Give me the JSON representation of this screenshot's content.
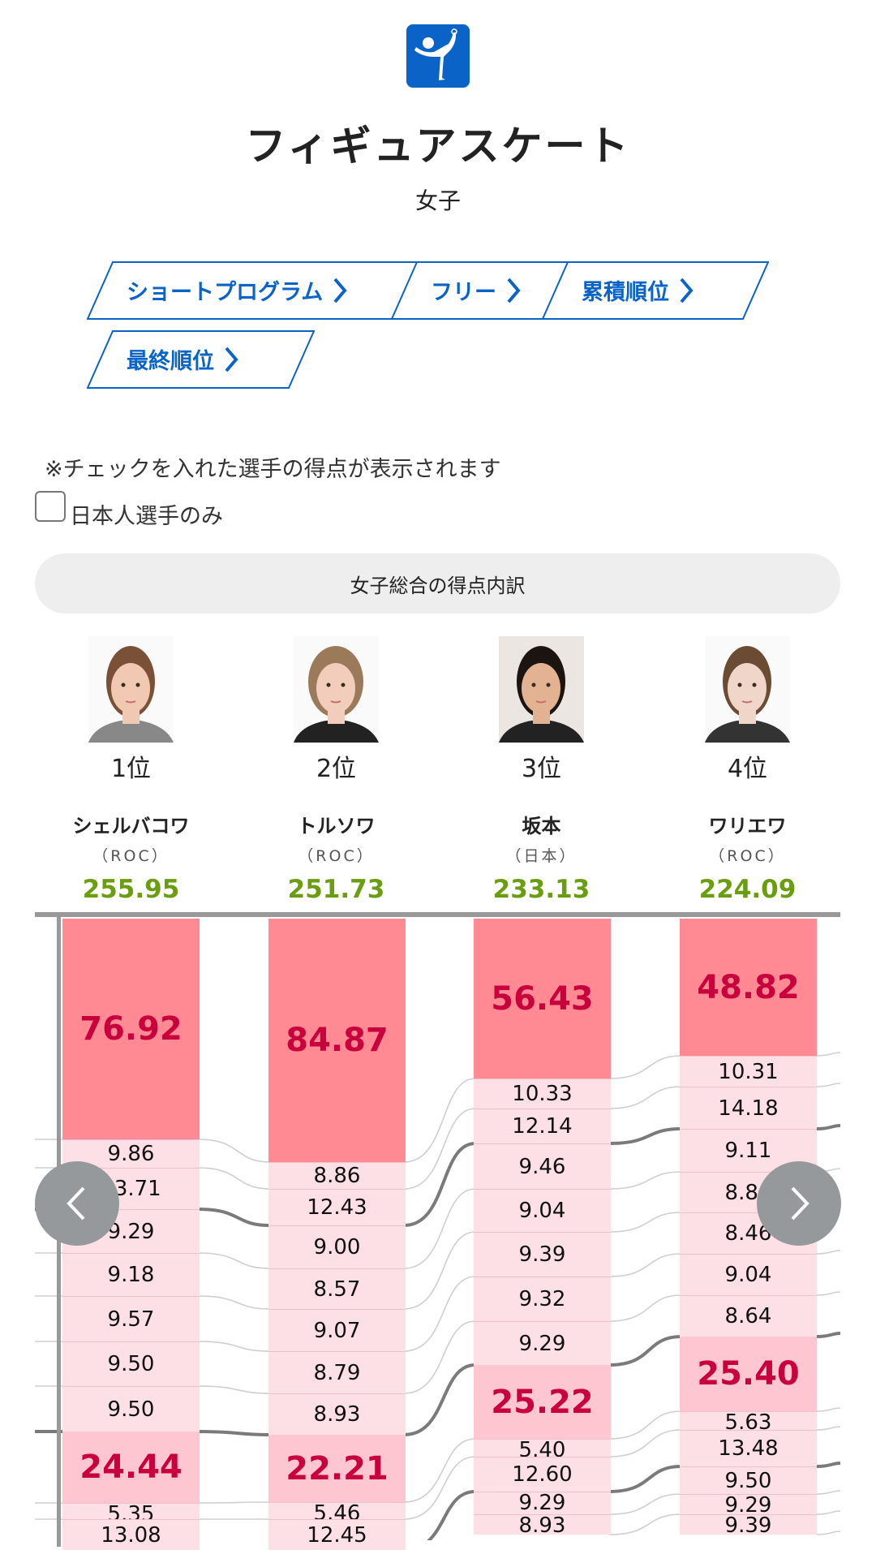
{
  "header": {
    "sport_icon": "figure-skating-pictogram",
    "title": "フィギュアスケート",
    "subtitle": "女子"
  },
  "tabs": [
    {
      "label": "ショートプログラム",
      "icon": "chevron-right"
    },
    {
      "label": "フリー",
      "icon": "chevron-right"
    },
    {
      "label": "累積順位",
      "icon": "chevron-right"
    },
    {
      "label": "最終順位",
      "icon": "chevron-right"
    }
  ],
  "filter": {
    "note": "※チェックを入れた選手の得点が表示されます",
    "checkbox_label": "日本人選手のみ",
    "checked": false
  },
  "breakdown_button": "女子総合の得点内訳",
  "colors": {
    "accent": "#0a64c8",
    "total": "#6a9e10",
    "major_bar": "#ff8a94",
    "major2_bar": "#fdc6d0",
    "minor_bar": "#fde0e6",
    "major_text": "#c8003c"
  },
  "athletes": [
    {
      "rank": "1位",
      "name": "シェルバコワ",
      "country": "（ROC）",
      "total": "255.95",
      "segments": [
        {
          "value": "76.92",
          "kind": "major"
        },
        {
          "value": "9.86",
          "kind": "minor"
        },
        {
          "value": "13.71",
          "kind": "minor"
        },
        {
          "value": "9.29",
          "kind": "minor"
        },
        {
          "value": "9.18",
          "kind": "minor"
        },
        {
          "value": "9.57",
          "kind": "minor"
        },
        {
          "value": "9.50",
          "kind": "minor"
        },
        {
          "value": "9.50",
          "kind": "minor"
        },
        {
          "value": "24.44",
          "kind": "major2"
        },
        {
          "value": "5.35",
          "kind": "minor"
        },
        {
          "value": "13.08",
          "kind": "minor"
        }
      ]
    },
    {
      "rank": "2位",
      "name": "トルソワ",
      "country": "（ROC）",
      "total": "251.73",
      "segments": [
        {
          "value": "84.87",
          "kind": "major"
        },
        {
          "value": "8.86",
          "kind": "minor"
        },
        {
          "value": "12.43",
          "kind": "minor"
        },
        {
          "value": "9.00",
          "kind": "minor"
        },
        {
          "value": "8.57",
          "kind": "minor"
        },
        {
          "value": "9.07",
          "kind": "minor"
        },
        {
          "value": "8.79",
          "kind": "minor"
        },
        {
          "value": "8.93",
          "kind": "minor"
        },
        {
          "value": "22.21",
          "kind": "major2"
        },
        {
          "value": "5.46",
          "kind": "minor"
        },
        {
          "value": "12.45",
          "kind": "minor"
        }
      ]
    },
    {
      "rank": "3位",
      "name": "坂本",
      "country": "（日本）",
      "total": "233.13",
      "segments": [
        {
          "value": "56.43",
          "kind": "major"
        },
        {
          "value": "10.33",
          "kind": "minor"
        },
        {
          "value": "12.14",
          "kind": "minor"
        },
        {
          "value": "9.46",
          "kind": "minor"
        },
        {
          "value": "9.04",
          "kind": "minor"
        },
        {
          "value": "9.39",
          "kind": "minor"
        },
        {
          "value": "9.32",
          "kind": "minor"
        },
        {
          "value": "9.29",
          "kind": "minor"
        },
        {
          "value": "25.22",
          "kind": "major2"
        },
        {
          "value": "5.40",
          "kind": "minor"
        },
        {
          "value": "12.60",
          "kind": "minor"
        },
        {
          "value": "9.29",
          "kind": "minor"
        },
        {
          "value": "8.93",
          "kind": "minor"
        }
      ]
    },
    {
      "rank": "4位",
      "name": "ワリエワ",
      "country": "（ROC）",
      "total": "224.09",
      "segments": [
        {
          "value": "48.82",
          "kind": "major"
        },
        {
          "value": "10.31",
          "kind": "minor"
        },
        {
          "value": "14.18",
          "kind": "minor"
        },
        {
          "value": "9.11",
          "kind": "minor"
        },
        {
          "value": "8.80",
          "kind": "minor"
        },
        {
          "value": "8.46",
          "kind": "minor"
        },
        {
          "value": "9.04",
          "kind": "minor"
        },
        {
          "value": "8.64",
          "kind": "minor"
        },
        {
          "value": "25.40",
          "kind": "major2"
        },
        {
          "value": "5.63",
          "kind": "minor"
        },
        {
          "value": "13.48",
          "kind": "minor"
        },
        {
          "value": "9.50",
          "kind": "minor"
        },
        {
          "value": "9.29",
          "kind": "minor"
        },
        {
          "value": "9.39",
          "kind": "minor"
        }
      ]
    }
  ],
  "nav": {
    "prev_icon": "chevron-left",
    "next_icon": "chevron-right"
  }
}
